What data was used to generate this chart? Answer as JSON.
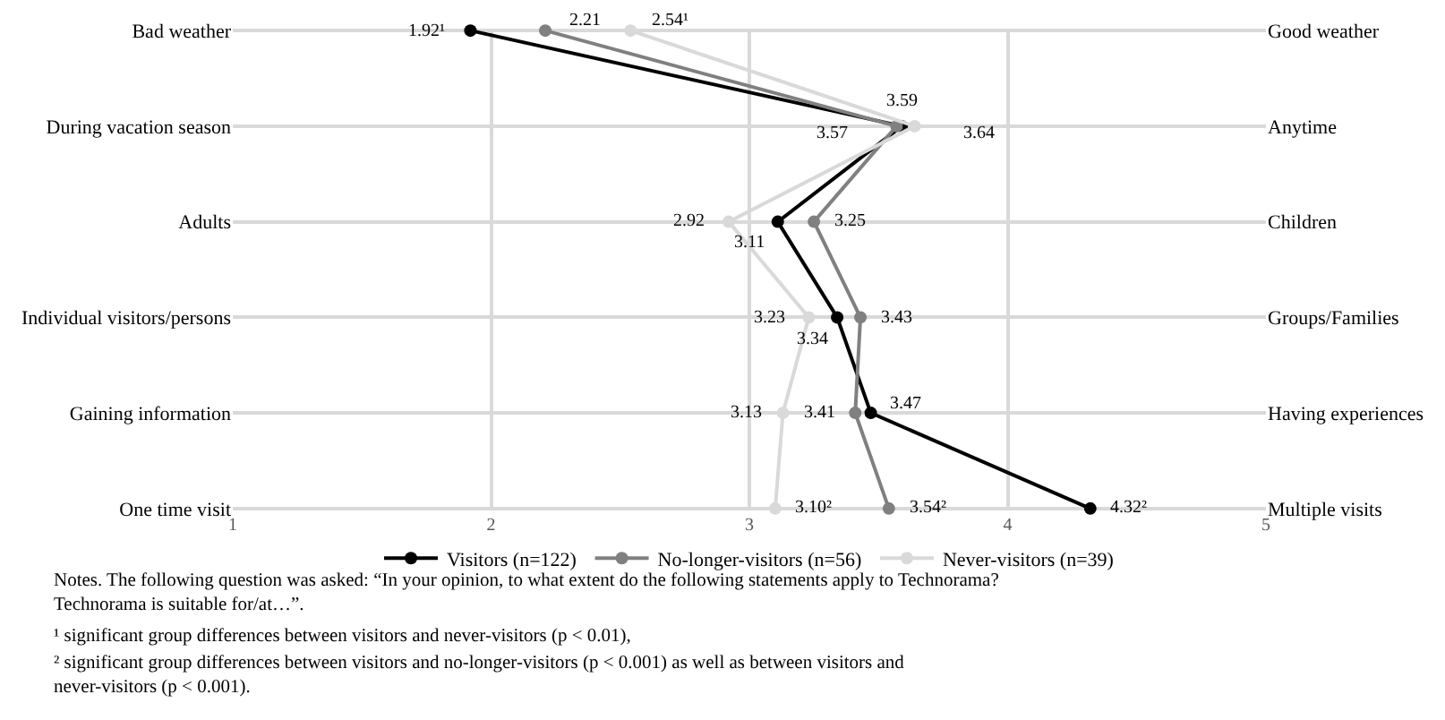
{
  "chart_data": {
    "type": "line",
    "orientation": "horizontal",
    "categories": [
      "Bad weather",
      "During vacation season",
      "Adults",
      "Individual visitors/persons",
      "Gaining information",
      "One time visit"
    ],
    "y2_categories": [
      "Good weather",
      "Anytime",
      "Children",
      "Groups/Families",
      "Having experiences",
      "Multiple visits"
    ],
    "series": [
      {
        "name": "Visitors (n=122)",
        "color": "#000000",
        "values": [
          1.92,
          3.59,
          3.11,
          3.34,
          3.47,
          4.32
        ],
        "value_labels": [
          "1.92¹",
          "3.59",
          "3.11",
          "3.34",
          "3.47",
          "4.32²"
        ]
      },
      {
        "name": "No-longer-visitors (n=56)",
        "color": "#808080",
        "values": [
          2.21,
          3.57,
          3.25,
          3.43,
          3.41,
          3.54
        ],
        "value_labels": [
          "2.21",
          "3.57",
          "3.25",
          "3.43",
          "3.41",
          "3.54²"
        ]
      },
      {
        "name": "Never-visitors (n=39)",
        "color": "#d9d9d9",
        "values": [
          2.54,
          3.64,
          2.92,
          3.23,
          3.13,
          3.1
        ],
        "value_labels": [
          "2.54¹",
          "3.64",
          "2.92",
          "3.23",
          "3.13",
          "3.10²"
        ]
      }
    ],
    "xlim": [
      1,
      5
    ],
    "xticks": [
      1,
      2,
      3,
      4,
      5
    ],
    "grid": true,
    "legend": "bottom",
    "marker": "circle",
    "line_style": "solid",
    "annotations": [
      "Notes. The following question was asked: “In your opinion, to what extent do the following statements apply to Technorama? Technorama is suitable for/at…”.",
      "¹ significant group differences between visitors and never-visitors (p < 0.01),",
      "² significant group differences between visitors and no-longer-visitors (p < 0.001) as well as between visitors and never-visitors (p < 0.001)."
    ]
  }
}
